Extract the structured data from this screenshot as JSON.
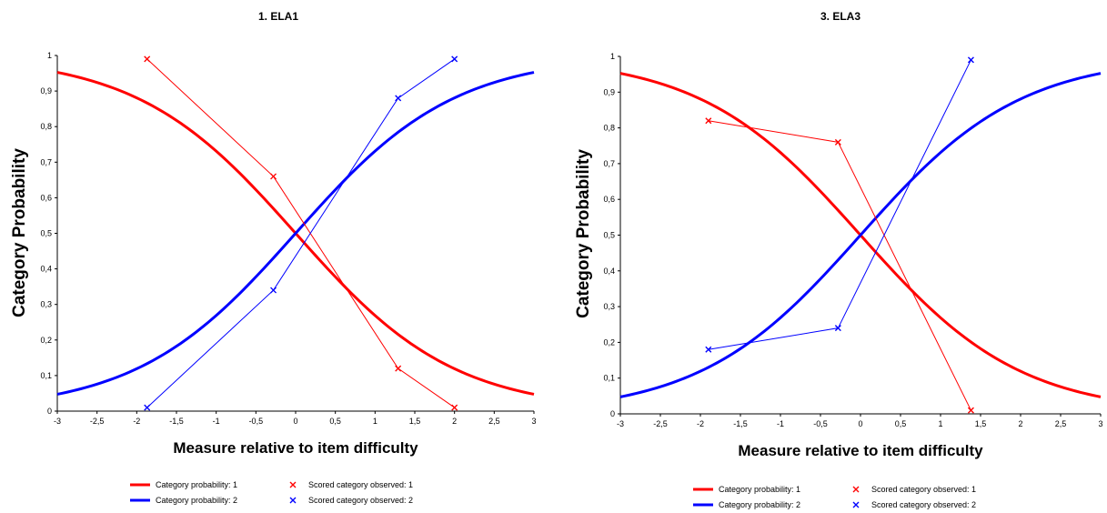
{
  "chart_data": [
    {
      "type": "line",
      "title": "1. ELA1",
      "xlabel": "Measure relative to item difficulty",
      "ylabel": "Category Probability",
      "xlim": [
        -3,
        3
      ],
      "ylim": [
        0,
        1
      ],
      "xticks": [
        "-3",
        "-2,5",
        "-2",
        "-1,5",
        "-1",
        "-0,5",
        "0",
        "0,5",
        "1",
        "1,5",
        "2",
        "2,5",
        "3"
      ],
      "yticks": [
        "0",
        "0,1",
        "0,2",
        "0,3",
        "0,4",
        "0,5",
        "0,6",
        "0,7",
        "0,8",
        "0,9",
        "1"
      ],
      "grid": false,
      "legend_position": "bottom",
      "curves": [
        {
          "name": "Category probability: 1",
          "color": "#ff0000",
          "function": "1/(1+exp(x))"
        },
        {
          "name": "Category probability: 2",
          "color": "#0000ff",
          "function": "1/(1+exp(-x))"
        }
      ],
      "series": [
        {
          "name": "Scored category observed: 1",
          "color": "#ff0000",
          "marker": "x",
          "x": [
            -1.87,
            -0.28,
            1.29,
            2.0
          ],
          "y": [
            0.99,
            0.66,
            0.12,
            0.01
          ]
        },
        {
          "name": "Scored category observed: 2",
          "color": "#0000ff",
          "marker": "x",
          "x": [
            -1.87,
            -0.28,
            1.29,
            2.0
          ],
          "y": [
            0.01,
            0.34,
            0.88,
            0.99
          ]
        }
      ]
    },
    {
      "type": "line",
      "title": "3. ELA3",
      "xlabel": "Measure relative to item difficulty",
      "ylabel": "Category Probability",
      "xlim": [
        -3,
        3
      ],
      "ylim": [
        0,
        1
      ],
      "xticks": [
        "-3",
        "-2,5",
        "-2",
        "-1,5",
        "-1",
        "-0,5",
        "0",
        "0,5",
        "1",
        "1,5",
        "2",
        "2,5",
        "3"
      ],
      "yticks": [
        "0",
        "0,1",
        "0,2",
        "0,3",
        "0,4",
        "0,5",
        "0,6",
        "0,7",
        "0,8",
        "0,9",
        "1"
      ],
      "grid": false,
      "legend_position": "bottom",
      "curves": [
        {
          "name": "Category probability: 1",
          "color": "#ff0000",
          "function": "1/(1+exp(x))"
        },
        {
          "name": "Category probability: 2",
          "color": "#0000ff",
          "function": "1/(1+exp(-x))"
        }
      ],
      "series": [
        {
          "name": "Scored category observed: 1",
          "color": "#ff0000",
          "marker": "x",
          "x": [
            -1.9,
            -0.28,
            1.38
          ],
          "y": [
            0.82,
            0.76,
            0.01
          ]
        },
        {
          "name": "Scored category observed: 2",
          "color": "#0000ff",
          "marker": "x",
          "x": [
            -1.9,
            -0.28,
            1.38
          ],
          "y": [
            0.18,
            0.24,
            0.99
          ]
        }
      ]
    }
  ]
}
